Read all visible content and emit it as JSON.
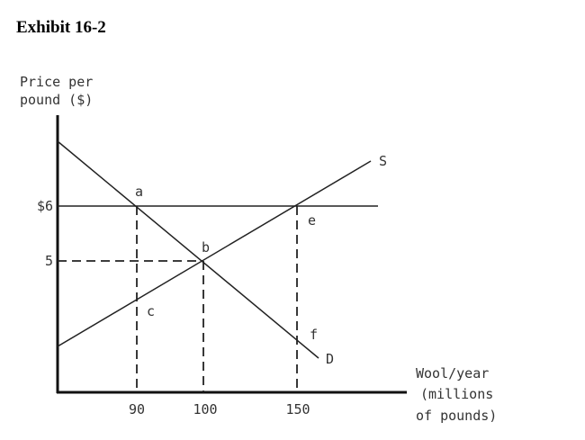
{
  "title": "Exhibit 16-2",
  "y_axis_label": [
    "Price per",
    "pound ($)"
  ],
  "x_axis_label": [
    "Wool/year",
    "(millions",
    "of pounds)"
  ],
  "y_ticks": [
    "$6",
    "5"
  ],
  "x_ticks": [
    "90",
    "100",
    "150"
  ],
  "curves": {
    "supply": "S",
    "demand": "D"
  },
  "points": {
    "a": "a",
    "b": "b",
    "c": "c",
    "e": "e",
    "f": "f"
  }
}
